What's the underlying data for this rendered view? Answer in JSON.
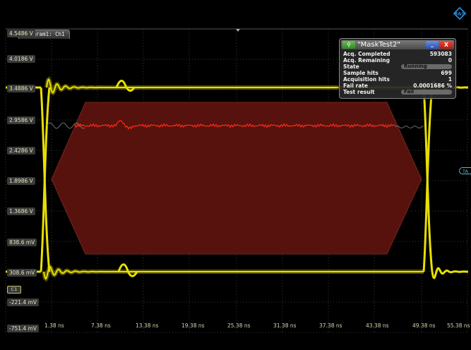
{
  "diagram": {
    "tab_label": "Diagram1: Ch1"
  },
  "y_axis": {
    "labels": [
      "4.5486 V",
      "4.0186 V",
      "3.4886 V",
      "2.9586 V",
      "2.4286 V",
      "1.8986 V",
      "1.3686 V",
      "838.6 mV",
      "308.6 mV",
      "-221.4 mV",
      "-751.4 mV"
    ]
  },
  "x_axis": {
    "labels": [
      "1.38 ns",
      "7.38 ns",
      "13.38 ns",
      "19.38 ns",
      "25.38 ns",
      "31.38 ns",
      "37.38 ns",
      "43.38 ns",
      "49.38 ns",
      "55.38 ns"
    ]
  },
  "markers": {
    "channel": "C1",
    "trigger": "TA"
  },
  "mask_test": {
    "title": "\"MaskTest2\"",
    "search_icon": "search-icon",
    "minimize_label": "_",
    "close_label": "X",
    "rows": [
      {
        "label": "Acq. Completed",
        "value": "593083"
      },
      {
        "label": "Acq. Remaining",
        "value": "0"
      },
      {
        "label": "State",
        "badge": "Running"
      },
      {
        "label": "Sample hits",
        "value": "699"
      },
      {
        "label": "Acquisition hits",
        "value": "1"
      },
      {
        "label": "Fail rate",
        "value": "0.0001686 %"
      },
      {
        "label": "Test result",
        "badge": "Fail"
      }
    ]
  },
  "colors": {
    "signal": "#e8e000",
    "mask_fill": "#6a1a12",
    "mask_edge": "#8a2a1e",
    "fail_trace": "#ff2a1a",
    "grid": "#3a3a3a",
    "logo": "#2a8fd8"
  }
}
